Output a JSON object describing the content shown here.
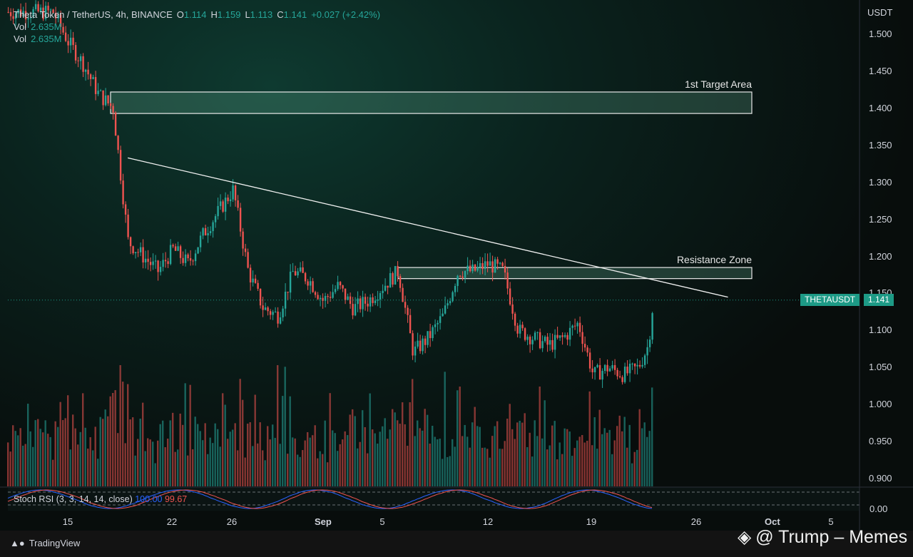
{
  "header": {
    "symbol": "Theta Token / TetherUS, 4h, BINANCE",
    "ohlc": [
      {
        "k": "O",
        "v": "1.114"
      },
      {
        "k": "H",
        "v": "1.159"
      },
      {
        "k": "L",
        "v": "1.113"
      },
      {
        "k": "C",
        "v": "1.141"
      }
    ],
    "change": "+0.027 (+2.42%)",
    "vol_rows": [
      {
        "k": "Vol",
        "v": "2.635M"
      },
      {
        "k": "Vol",
        "v": "2.635M"
      }
    ]
  },
  "price_axis": {
    "unit": "USDT",
    "ticks": [
      "1.500",
      "1.450",
      "1.400",
      "1.350",
      "1.300",
      "1.250",
      "1.200",
      "1.150",
      "1.100",
      "1.050",
      "1.000",
      "0.950",
      "0.900"
    ]
  },
  "time_axis": {
    "ticks": [
      "15",
      "22",
      "26",
      "Sep",
      "5",
      "12",
      "19",
      "26",
      "Oct",
      "5"
    ]
  },
  "price_tag": {
    "symbol": "THETAUSDT",
    "value": "1.141"
  },
  "zones": [
    {
      "label": "1st Target Area",
      "low": 1.393,
      "high": 1.422
    },
    {
      "label": "Resistance Zone",
      "low": 1.17,
      "high": 1.185
    }
  ],
  "stoch_rsi": {
    "label": "Stoch RSI (3, 3, 14, 14, close)",
    "k": "100.00",
    "d": "99.67",
    "axis_tick": "0.00"
  },
  "footer": {
    "brand": "TradingView",
    "watermark": "@ Trump – Memes"
  },
  "colors": {
    "up": "#26a69a",
    "down": "#ef5350",
    "accent": "#1d9a86"
  },
  "chart_data": {
    "type": "candlestick",
    "title": "Theta Token / TetherUS, 4h, BINANCE",
    "ylabel": "USDT",
    "ylim": [
      0.88,
      1.53
    ],
    "x_categories": [
      "15",
      "22",
      "26",
      "Sep",
      "5",
      "12",
      "19",
      "26",
      "Oct",
      "5"
    ],
    "price_path": [
      {
        "date": "Aug 14",
        "close": 1.53
      },
      {
        "date": "Aug 15",
        "close": 1.49
      },
      {
        "date": "Aug 16",
        "close": 1.46
      },
      {
        "date": "Aug 17",
        "close": 1.42
      },
      {
        "date": "Aug 18",
        "close": 1.4
      },
      {
        "date": "Aug 19",
        "close": 1.22
      },
      {
        "date": "Aug 20",
        "close": 1.2
      },
      {
        "date": "Aug 21",
        "close": 1.18
      },
      {
        "date": "Aug 22",
        "close": 1.21
      },
      {
        "date": "Aug 23",
        "close": 1.19
      },
      {
        "date": "Aug 24",
        "close": 1.23
      },
      {
        "date": "Aug 25",
        "close": 1.26
      },
      {
        "date": "Aug 26",
        "close": 1.29
      },
      {
        "date": "Aug 27",
        "close": 1.18
      },
      {
        "date": "Aug 28",
        "close": 1.13
      },
      {
        "date": "Aug 29",
        "close": 1.12
      },
      {
        "date": "Aug 30",
        "close": 1.18
      },
      {
        "date": "Aug 31",
        "close": 1.17
      },
      {
        "date": "Sep 1",
        "close": 1.14
      },
      {
        "date": "Sep 2",
        "close": 1.16
      },
      {
        "date": "Sep 3",
        "close": 1.13
      },
      {
        "date": "Sep 4",
        "close": 1.14
      },
      {
        "date": "Sep 5",
        "close": 1.16
      },
      {
        "date": "Sep 6",
        "close": 1.18
      },
      {
        "date": "Sep 7",
        "close": 1.07
      },
      {
        "date": "Sep 8",
        "close": 1.09
      },
      {
        "date": "Sep 9",
        "close": 1.12
      },
      {
        "date": "Sep 10",
        "close": 1.18
      },
      {
        "date": "Sep 11",
        "close": 1.18
      },
      {
        "date": "Sep 12",
        "close": 1.19
      },
      {
        "date": "Sep 13",
        "close": 1.18
      },
      {
        "date": "Sep 14",
        "close": 1.1
      },
      {
        "date": "Sep 15",
        "close": 1.09
      },
      {
        "date": "Sep 16",
        "close": 1.08
      },
      {
        "date": "Sep 17",
        "close": 1.09
      },
      {
        "date": "Sep 18",
        "close": 1.11
      },
      {
        "date": "Sep 19",
        "close": 1.04
      },
      {
        "date": "Sep 20",
        "close": 1.05
      },
      {
        "date": "Sep 21",
        "close": 1.04
      },
      {
        "date": "Sep 22",
        "close": 1.05
      },
      {
        "date": "Sep 22 16:00",
        "close": 1.08
      },
      {
        "date": "Sep 23",
        "close": 1.141
      }
    ],
    "trendline": [
      {
        "date": "Aug 19",
        "price": 1.333
      },
      {
        "date": "Sep 28",
        "price": 1.145
      }
    ],
    "last_price": 1.141
  }
}
